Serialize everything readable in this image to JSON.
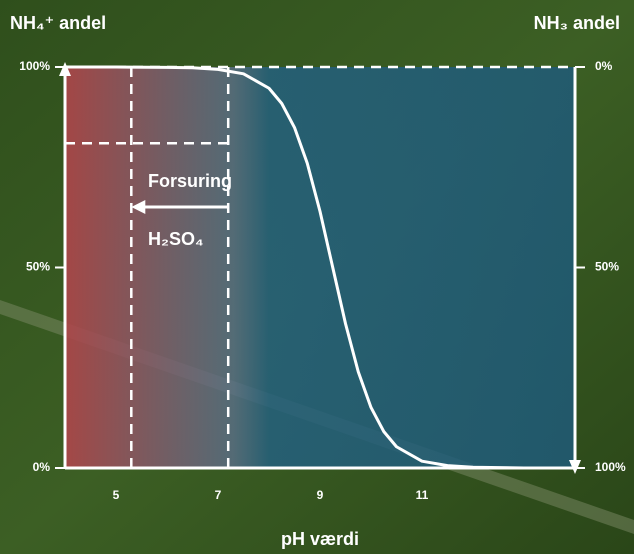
{
  "chart_data": {
    "type": "line",
    "title_left": "NH₄⁺ andel",
    "title_right": "NH₃ andel",
    "xlabel": "pH værdi",
    "annotation_top": "Forsuring",
    "annotation_bottom": "H₂SO₄",
    "x": [
      4,
      5,
      6,
      6.5,
      7,
      7.5,
      8,
      8.25,
      8.5,
      8.75,
      9,
      9.25,
      9.5,
      9.75,
      10,
      10.25,
      10.5,
      11,
      11.5,
      12,
      13,
      14
    ],
    "series": [
      {
        "color": "#ffffff",
        "values": [
          100,
          100,
          99.9,
          99.8,
          99.4,
          98.3,
          94.7,
          90.9,
          84.9,
          76.0,
          64.0,
          50,
          36.0,
          24.0,
          15.1,
          9.1,
          5.3,
          1.7,
          0.6,
          0.2,
          0,
          0
        ]
      }
    ],
    "xlim": [
      4,
      14
    ],
    "xticks": [
      5,
      7,
      9,
      11
    ],
    "ylim": [
      0,
      100
    ],
    "yticks": [
      {
        "value": 0,
        "label": "0%"
      },
      {
        "value": 50,
        "label": "50%"
      },
      {
        "value": 100,
        "label": "100%"
      }
    ],
    "y2lim": [
      100,
      0
    ],
    "y2ticks": [
      {
        "value": 0,
        "label": "0%"
      },
      {
        "value": 50,
        "label": "50%"
      },
      {
        "value": 100,
        "label": "100%"
      }
    ],
    "vlines": [
      5.3,
      7.2
    ],
    "hline": 81
  }
}
